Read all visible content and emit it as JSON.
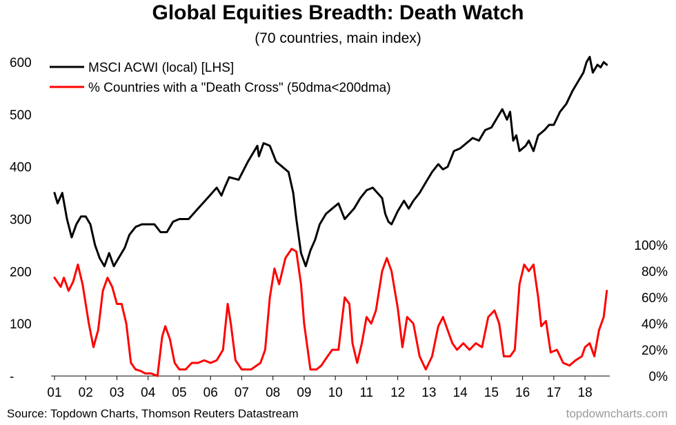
{
  "header": {
    "title": "Global Equities Breadth: Death Watch",
    "subtitle": "(70 countries, main index)"
  },
  "footer": {
    "source": "Source: Topdown Charts, Thomson Reuters Datastream",
    "brand": "topdowncharts.com"
  },
  "colors": {
    "acwi": "#000000",
    "death_cross": "#ff0000"
  },
  "chart_data": {
    "type": "line",
    "legend_placement": "top-left",
    "grid": false,
    "x_ticks": [
      "01",
      "02",
      "03",
      "04",
      "05",
      "06",
      "07",
      "08",
      "09",
      "10",
      "11",
      "12",
      "13",
      "14",
      "15",
      "16",
      "17",
      "18"
    ],
    "xlim": [
      2001.0,
      2018.75
    ],
    "y_left": {
      "ticks": [
        "-",
        "100",
        "200",
        "300",
        "400",
        "500",
        "600"
      ],
      "ylim": [
        0,
        600
      ]
    },
    "y_right": {
      "ticks": [
        "0%",
        "20%",
        "40%",
        "60%",
        "80%",
        "100%"
      ],
      "ylim": [
        0,
        100
      ]
    },
    "series": [
      {
        "name": "MSCI ACWI (local) [LHS]",
        "axis": "left",
        "x": [
          2001.0,
          2001.1,
          2001.25,
          2001.4,
          2001.55,
          2001.7,
          2001.85,
          2002.0,
          2002.15,
          2002.3,
          2002.45,
          2002.6,
          2002.75,
          2002.9,
          2003.1,
          2003.25,
          2003.4,
          2003.6,
          2003.8,
          2004.0,
          2004.2,
          2004.4,
          2004.6,
          2004.8,
          2005.0,
          2005.3,
          2005.6,
          2005.9,
          2006.2,
          2006.35,
          2006.45,
          2006.6,
          2006.9,
          2007.2,
          2007.5,
          2007.55,
          2007.7,
          2007.9,
          2008.1,
          2008.3,
          2008.5,
          2008.65,
          2008.75,
          2008.9,
          2009.05,
          2009.2,
          2009.35,
          2009.5,
          2009.7,
          2009.9,
          2010.1,
          2010.3,
          2010.45,
          2010.6,
          2010.8,
          2011.0,
          2011.2,
          2011.35,
          2011.5,
          2011.6,
          2011.7,
          2011.8,
          2012.0,
          2012.2,
          2012.35,
          2012.5,
          2012.7,
          2012.9,
          2013.1,
          2013.3,
          2013.45,
          2013.6,
          2013.8,
          2014.0,
          2014.2,
          2014.4,
          2014.6,
          2014.8,
          2015.0,
          2015.2,
          2015.35,
          2015.5,
          2015.6,
          2015.7,
          2015.8,
          2015.9,
          2016.1,
          2016.2,
          2016.35,
          2016.5,
          2016.7,
          2016.85,
          2017.0,
          2017.2,
          2017.4,
          2017.6,
          2017.8,
          2017.95,
          2018.05,
          2018.15,
          2018.25,
          2018.4,
          2018.5,
          2018.6,
          2018.7
        ],
        "values": [
          350,
          330,
          350,
          300,
          265,
          290,
          305,
          305,
          290,
          250,
          225,
          210,
          235,
          210,
          230,
          245,
          270,
          285,
          290,
          290,
          290,
          275,
          275,
          295,
          300,
          300,
          320,
          340,
          360,
          345,
          360,
          380,
          375,
          410,
          440,
          420,
          445,
          440,
          410,
          400,
          390,
          350,
          300,
          235,
          210,
          240,
          260,
          290,
          310,
          320,
          330,
          300,
          310,
          320,
          340,
          355,
          360,
          350,
          340,
          310,
          295,
          290,
          315,
          335,
          320,
          335,
          350,
          370,
          390,
          405,
          395,
          400,
          430,
          435,
          445,
          455,
          450,
          470,
          475,
          495,
          510,
          490,
          505,
          450,
          460,
          430,
          440,
          450,
          430,
          460,
          470,
          480,
          480,
          505,
          520,
          545,
          565,
          580,
          600,
          610,
          580,
          595,
          590,
          600,
          595
        ]
      },
      {
        "name": "% Countries with a \"Death Cross\" (50dma<200dma)",
        "axis": "right",
        "x": [
          2001.0,
          2001.2,
          2001.3,
          2001.45,
          2001.6,
          2001.75,
          2001.9,
          2002.1,
          2002.25,
          2002.4,
          2002.55,
          2002.7,
          2002.85,
          2003.0,
          2003.15,
          2003.3,
          2003.45,
          2003.6,
          2003.75,
          2003.9,
          2004.1,
          2004.3,
          2004.45,
          2004.55,
          2004.7,
          2004.85,
          2005.0,
          2005.2,
          2005.4,
          2005.6,
          2005.8,
          2006.0,
          2006.2,
          2006.4,
          2006.55,
          2006.65,
          2006.8,
          2007.0,
          2007.3,
          2007.6,
          2007.75,
          2007.9,
          2008.05,
          2008.2,
          2008.4,
          2008.6,
          2008.75,
          2008.9,
          2009.0,
          2009.2,
          2009.4,
          2009.55,
          2009.75,
          2009.9,
          2010.1,
          2010.3,
          2010.45,
          2010.55,
          2010.7,
          2010.85,
          2011.0,
          2011.15,
          2011.3,
          2011.5,
          2011.65,
          2011.8,
          2012.0,
          2012.15,
          2012.3,
          2012.5,
          2012.7,
          2012.9,
          2013.1,
          2013.3,
          2013.45,
          2013.6,
          2013.75,
          2013.9,
          2014.1,
          2014.3,
          2014.5,
          2014.7,
          2014.9,
          2015.1,
          2015.25,
          2015.4,
          2015.6,
          2015.75,
          2015.9,
          2016.05,
          2016.2,
          2016.35,
          2016.5,
          2016.6,
          2016.75,
          2016.9,
          2017.1,
          2017.3,
          2017.5,
          2017.7,
          2017.9,
          2018.0,
          2018.15,
          2018.3,
          2018.45,
          2018.6,
          2018.7
        ],
        "values": [
          75,
          68,
          75,
          65,
          72,
          85,
          70,
          40,
          22,
          35,
          65,
          75,
          68,
          55,
          55,
          40,
          10,
          5,
          4,
          2,
          2,
          0,
          30,
          38,
          28,
          10,
          5,
          5,
          10,
          10,
          12,
          10,
          12,
          20,
          55,
          40,
          12,
          5,
          5,
          10,
          20,
          60,
          82,
          70,
          90,
          97,
          95,
          70,
          40,
          5,
          5,
          8,
          15,
          20,
          20,
          60,
          55,
          25,
          10,
          25,
          45,
          40,
          50,
          80,
          90,
          80,
          52,
          22,
          45,
          40,
          15,
          5,
          15,
          38,
          45,
          35,
          25,
          20,
          25,
          20,
          25,
          22,
          45,
          50,
          40,
          15,
          15,
          20,
          70,
          85,
          80,
          85,
          60,
          38,
          42,
          18,
          20,
          10,
          8,
          12,
          15,
          22,
          25,
          15,
          35,
          45,
          65
        ]
      }
    ]
  }
}
